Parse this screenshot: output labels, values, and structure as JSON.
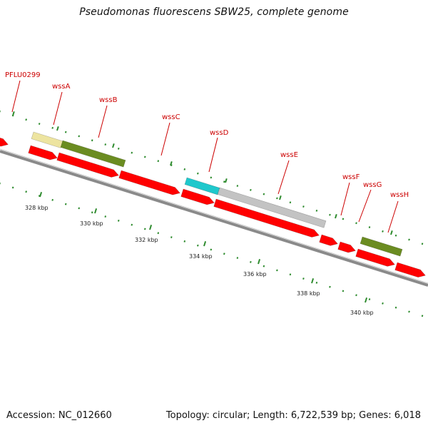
{
  "map": {
    "title": "Pseudomonas fluorescens SBW25, complete genome",
    "accession": "Accession: NC_012660",
    "summary": "Topology: circular; Length: 6,722,539 bp; Genes: 6,018"
  },
  "gene_labels": [
    "PFLU0299",
    "wssA",
    "wssB",
    "wssC",
    "wssD",
    "wssE",
    "wssF",
    "wssG",
    "wssH"
  ],
  "kbp_labels": [
    "328 kbp",
    "330 kbp",
    "332 kbp",
    "334 kbp",
    "336 kbp",
    "338 kbp",
    "340 kbp"
  ],
  "colors": {
    "gene_red": "#ff0000",
    "gene_green": "#6b8c21",
    "gene_cyan": "#1fc8cc",
    "gene_gray": "#c3c3c3",
    "gene_yellow": "#ede4a0",
    "backbone": "#7a7a7a",
    "tick_green": "#2e8b2e",
    "label_red": "#cc0000"
  }
}
